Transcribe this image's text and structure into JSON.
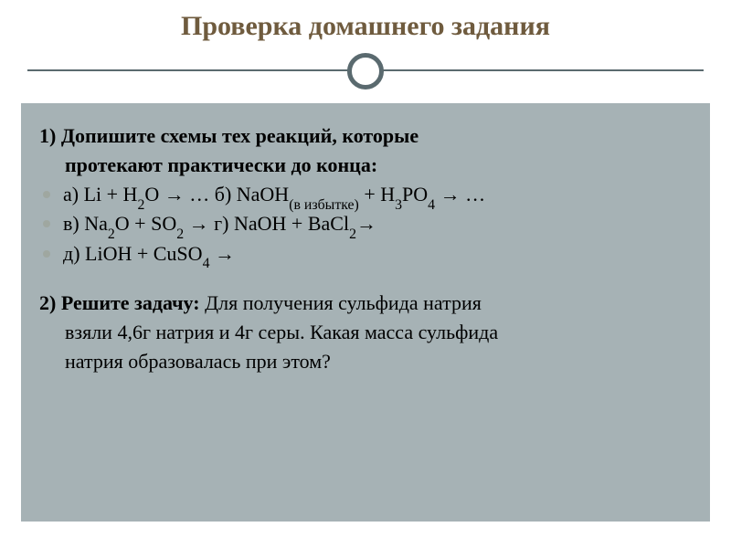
{
  "slide": {
    "title": "Проверка домашнего задания",
    "title_color": "#6f5b3e",
    "title_fontsize": 30,
    "divider": {
      "line_color": "#5a6a6f",
      "ring_outer_color": "#5a6a6f",
      "ring_bg": "#ffffff",
      "ring_diameter": 40,
      "ring_border": 5
    },
    "panel": {
      "background": "#a6b2b5",
      "text_color": "#000000",
      "body_fontsize": 22,
      "bullet_color": "#9fa7a0"
    },
    "block1": {
      "lead_a": "1) Допишите  схемы тех реакций, которые",
      "lead_b": "протекают практически до конца:",
      "items": [
        "а) Li + H<sub>2</sub>O → …      б) NaOH<sub>(в избытке)</sub> + H<sub>3</sub>PO<sub>4</sub> → …",
        "в) Na<sub>2</sub>O + SO<sub>2</sub> →       г) NaOH + BaCl<sub>2</sub>→",
        "д) LiOH + CuSO<sub>4</sub> →"
      ]
    },
    "block2": {
      "lead_bold": "2) Решите задачу: ",
      "lead_rest": "Для получения сульфида натрия",
      "line2": "взяли 4,6г натрия и 4г серы. Какая масса сульфида",
      "line3": "натрия образовалась при этом?"
    }
  }
}
